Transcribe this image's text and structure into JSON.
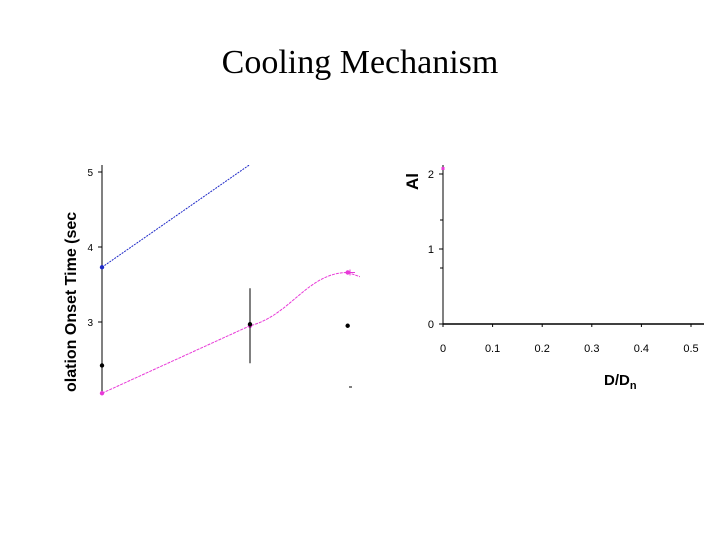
{
  "slide": {
    "title": "Cooling Mechanism"
  },
  "chart_data": [
    {
      "type": "line",
      "title": "",
      "ylabel": "olation Onset Time (sec",
      "xlabel": "",
      "ylim": [
        2.1,
        5.1
      ],
      "yticks": [
        "3",
        "4",
        "5"
      ],
      "series": [
        {
          "color": "#1f2ac8",
          "points": [
            [
              0,
              3.73
            ],
            [
              1,
              5.1
            ]
          ]
        },
        {
          "color": "#e83ad8",
          "points": [
            [
              0,
              2.05
            ],
            [
              1,
              2.95
            ],
            [
              1.66,
              3.66
            ],
            [
              1.75,
              3.6
            ]
          ]
        },
        {
          "color": "#000000",
          "points": [
            [
              0,
              2.42
            ],
            [
              1,
              2.97
            ],
            [
              1.66,
              2.95
            ]
          ]
        }
      ],
      "error_bars": [
        {
          "x": 1,
          "low": 2.45,
          "high": 3.45
        }
      ]
    },
    {
      "type": "scatter",
      "title": "",
      "ylabel": "Al",
      "xlabel": "D/Dn",
      "xticks": [
        "0",
        "0.1",
        "0.2",
        "0.3",
        "0.4",
        "0.5"
      ],
      "yticks": [
        "0",
        "1",
        "2"
      ],
      "xlim": [
        0,
        0.52
      ],
      "ylim": [
        0,
        2.1
      ],
      "series": [
        {
          "color": "#e83ad8",
          "points": [
            [
              0.0,
              2.05
            ]
          ]
        }
      ]
    }
  ]
}
